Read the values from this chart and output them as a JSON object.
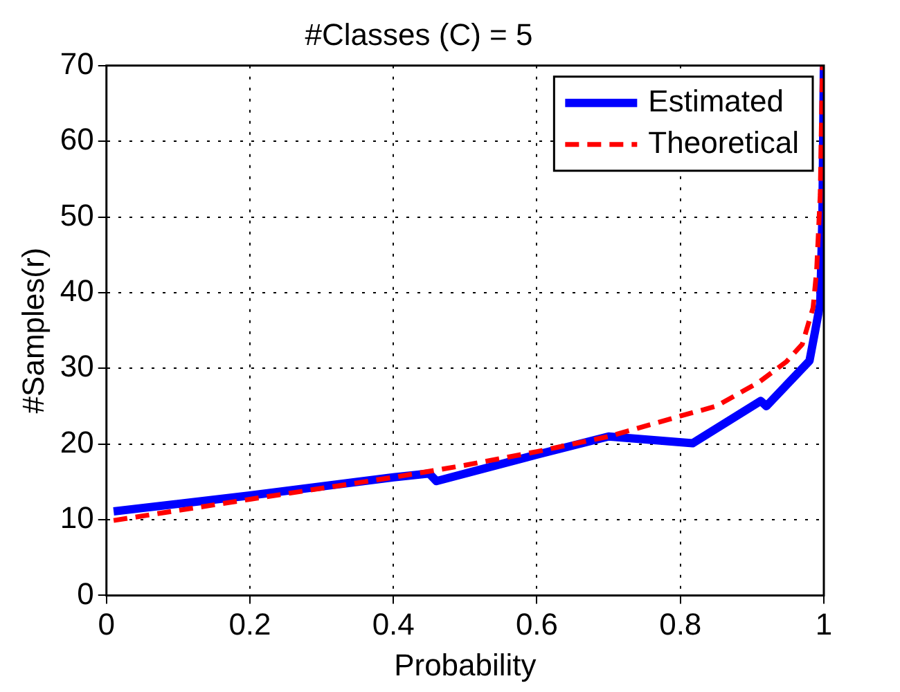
{
  "chart_data": {
    "type": "line",
    "title": "#Classes (C) = 5",
    "xlabel": "Probability",
    "ylabel": "#Samples(r)",
    "xlim": [
      0,
      1
    ],
    "ylim": [
      0,
      70
    ],
    "xticks": [
      0,
      0.2,
      0.4,
      0.6,
      0.8,
      1
    ],
    "yticks": [
      0,
      10,
      20,
      30,
      40,
      50,
      60,
      70
    ],
    "grid": true,
    "legend": "top right",
    "marker": "none",
    "series": [
      {
        "name": "Estimated",
        "color": "#0000ff",
        "line_style": "solid",
        "x": [
          0.01,
          0.2,
          0.4,
          0.45,
          0.46,
          0.6,
          0.7,
          0.817,
          0.912,
          0.92,
          0.98,
          0.988,
          0.995,
          0.998,
          1
        ],
        "values": [
          11.1,
          13.2,
          15.6,
          16.1,
          15.1,
          18.6,
          21,
          20.1,
          25.7,
          25,
          31,
          35,
          38.6,
          50,
          70
        ]
      },
      {
        "name": "Theoretical",
        "color": "#ff0000",
        "line_style": "dashed",
        "x": [
          0.01,
          0.2,
          0.4,
          0.5,
          0.6,
          0.7,
          0.8,
          0.85,
          0.91,
          0.948,
          0.97,
          0.985,
          0.99,
          0.995,
          0.998
        ],
        "values": [
          9.9,
          12.7,
          15.6,
          17.2,
          19,
          21,
          23.7,
          25,
          28.2,
          30.9,
          33.2,
          38,
          43,
          53,
          70
        ]
      }
    ]
  }
}
